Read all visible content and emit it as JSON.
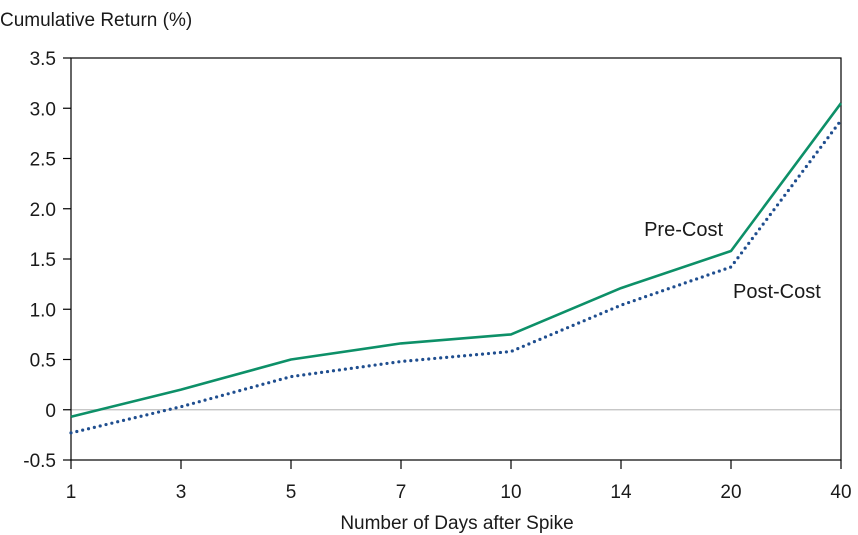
{
  "chart_data": {
    "type": "line",
    "title": "",
    "ylabel": "Cumulative Return (%)",
    "xlabel": "Number of Days after Spike",
    "categories": [
      "1",
      "3",
      "5",
      "7",
      "10",
      "14",
      "20",
      "40"
    ],
    "ylim": [
      -0.5,
      3.5
    ],
    "yticks": [
      -0.5,
      0,
      0.5,
      1.0,
      1.5,
      2.0,
      2.5,
      3.0,
      3.5
    ],
    "ytick_labels": [
      "-0.5",
      "0",
      "0.5",
      "1.0",
      "1.5",
      "2.0",
      "2.5",
      "3.0",
      "3.5"
    ],
    "grid": false,
    "zero_line": true,
    "series": [
      {
        "name": "Pre-Cost",
        "values": [
          -0.07,
          0.2,
          0.5,
          0.66,
          0.75,
          1.21,
          1.58,
          3.05
        ],
        "color": "#0d9068",
        "style": "solid"
      },
      {
        "name": "Post-Cost",
        "values": [
          -0.23,
          0.03,
          0.33,
          0.48,
          0.58,
          1.04,
          1.42,
          2.88
        ],
        "color": "#1f4e8f",
        "style": "dotted"
      }
    ]
  },
  "colors": {
    "axis": "#000000",
    "zero_line": "#bfbfbf",
    "text": "#1a1a1a"
  }
}
